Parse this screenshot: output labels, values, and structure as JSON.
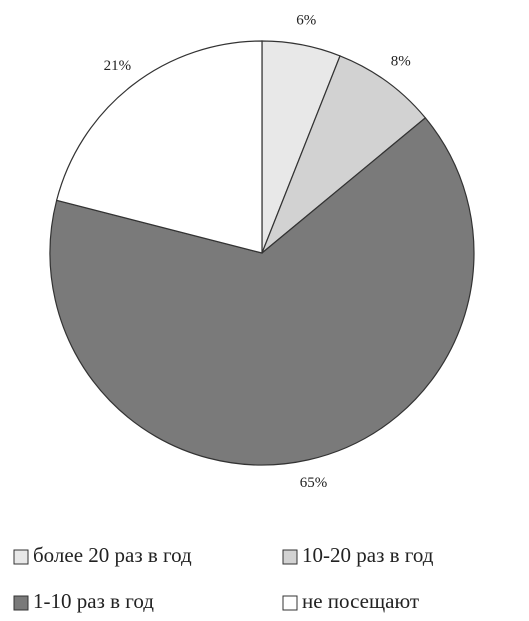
{
  "chart_data": {
    "type": "pie",
    "categories": [
      "более 20 раз в год",
      "10-20 раз в год",
      "1-10 раз в год",
      "не посещают"
    ],
    "values": [
      6,
      8,
      65,
      21
    ],
    "value_labels": [
      "6%",
      "8%",
      "65%",
      "21%"
    ],
    "colors": [
      "#e8e8e8",
      "#d2d2d2",
      "#7a7a7a",
      "#ffffff"
    ]
  }
}
